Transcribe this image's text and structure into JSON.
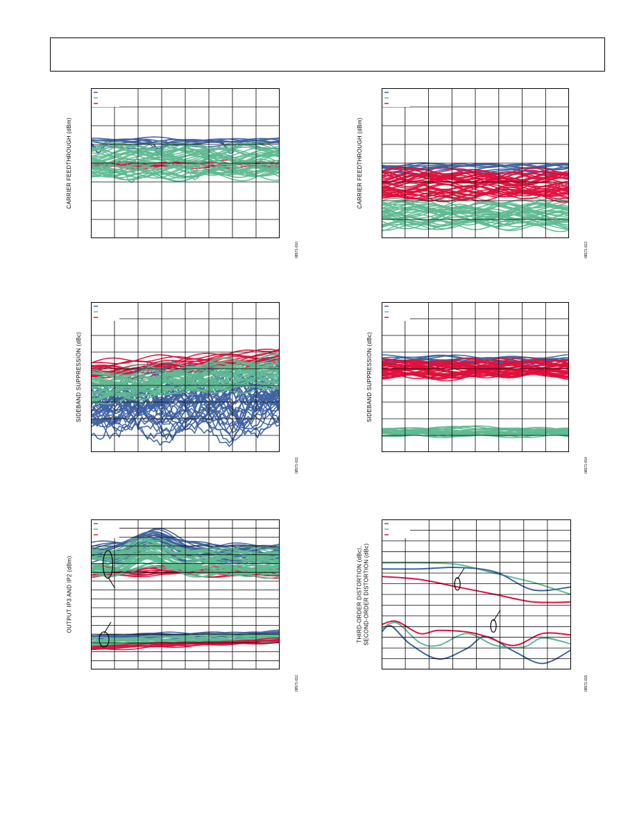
{
  "colors": {
    "blue": "#3f62a0",
    "green": "#5fba91",
    "red": "#e0103c",
    "grid": "#000000"
  },
  "chart_data": [
    {
      "type": "line",
      "ylabel": "CARRIER FEEDTHROUGH (dBm)",
      "figure_id": "08571-010",
      "legend": [
        "",
        "",
        ""
      ],
      "grid_cols": 8,
      "grid_rows": 8,
      "series": [
        {
          "color": "blue",
          "band": [
            0.61,
            0.66
          ],
          "dips": [
            [
              0.04,
              0.55
            ],
            [
              0.36,
              0.35
            ],
            [
              0.74,
              0.45
            ]
          ],
          "lines": 10,
          "seed": 1
        },
        {
          "color": "red",
          "band": [
            0.46,
            0.52
          ],
          "lines": 8,
          "seed": 2
        },
        {
          "color": "green",
          "band": [
            0.42,
            0.61
          ],
          "dips": [
            [
              0.55,
              0.42
            ],
            [
              0.21,
              0.38
            ]
          ],
          "lines": 40,
          "seed": 3
        }
      ]
    },
    {
      "type": "line",
      "ylabel": "CARRIER FEEDTHROUGH (dBm)",
      "figure_id": "08571-013",
      "legend": [
        "",
        "",
        ""
      ],
      "grid_cols": 8,
      "grid_rows": 8,
      "series": [
        {
          "color": "green",
          "band": [
            0.08,
            0.25
          ],
          "lines": 35,
          "seed": 4
        },
        {
          "color": "blue",
          "band": [
            0.42,
            0.49
          ],
          "lines": 10,
          "seed": 5
        },
        {
          "color": "red",
          "band": [
            0.28,
            0.44
          ],
          "lines": 40,
          "seed": 6
        }
      ]
    },
    {
      "type": "line",
      "ylabel": "SIDEBAND SUPPRESSION (dBc)",
      "figure_id": "08571-011",
      "legend": [
        "",
        "",
        ""
      ],
      "grid_cols": 8,
      "grid_rows": 9,
      "series": [
        {
          "color": "red",
          "band": [
            0.53,
            0.64
          ],
          "slope": 0.09,
          "lines": 20,
          "seed": 7
        },
        {
          "color": "blue",
          "band": [
            0.22,
            0.5
          ],
          "slope": 0.06,
          "lines": 40,
          "seed": 8,
          "chaotic": true
        },
        {
          "color": "green",
          "band": [
            0.4,
            0.57
          ],
          "slope": 0.1,
          "lines": 40,
          "seed": 9
        }
      ]
    },
    {
      "type": "line",
      "ylabel": "SIDEBAND SUPPRESSION (dBc)",
      "figure_id": "08571-014",
      "legend": [
        "",
        "",
        ""
      ],
      "grid_cols": 8,
      "grid_rows": 9,
      "series": [
        {
          "color": "green",
          "band": [
            0.11,
            0.16
          ],
          "lines": 25,
          "seed": 10
        },
        {
          "color": "blue",
          "band": [
            0.58,
            0.64
          ],
          "lines": 10,
          "seed": 11
        },
        {
          "color": "red",
          "band": [
            0.5,
            0.61
          ],
          "lines": 40,
          "seed": 12
        }
      ]
    },
    {
      "type": "line",
      "ylabel": "OUTPUT IP3 AND IP2 (dBm)",
      "figure_id": "08571-012",
      "legend": [
        "",
        "",
        ""
      ],
      "grid_cols": 8,
      "grid_rows": 17,
      "series": [
        {
          "color": "blue",
          "band": [
            0.72,
            0.83
          ],
          "bump": [
            0.34,
            0.1
          ],
          "lines": 25,
          "seed": 13
        },
        {
          "color": "red",
          "band": [
            0.62,
            0.68
          ],
          "lines": 12,
          "seed": 14
        },
        {
          "color": "green",
          "band": [
            0.64,
            0.79
          ],
          "bump": [
            0.3,
            0.07
          ],
          "lines": 40,
          "seed": 15
        },
        {
          "color": "blue",
          "band": [
            0.2,
            0.24
          ],
          "slope": 0.03,
          "lines": 10,
          "seed": 16
        },
        {
          "color": "green",
          "band": [
            0.17,
            0.22
          ],
          "slope": 0.03,
          "lines": 20,
          "seed": 17
        },
        {
          "color": "red",
          "band": [
            0.15,
            0.18
          ],
          "slope": 0.05,
          "lines": 10,
          "seed": 18
        }
      ],
      "ellipses": [
        [
          0.09,
          0.7
        ],
        [
          0.07,
          0.2
        ]
      ]
    },
    {
      "type": "line",
      "ylabel": "THIRD-ORDER DISTORTION (dBc),\nSECOND-ORDER DISTORTION (dBc)",
      "figure_id": "08571-015",
      "legend": [
        "",
        "",
        ""
      ],
      "grid_cols": 8,
      "grid_rows": 14,
      "curves": [
        {
          "color": "red",
          "points": [
            [
              0,
              0.62
            ],
            [
              0.2,
              0.6
            ],
            [
              0.4,
              0.55
            ],
            [
              0.6,
              0.5
            ],
            [
              0.8,
              0.45
            ],
            [
              1,
              0.45
            ]
          ]
        },
        {
          "color": "green",
          "points": [
            [
              0,
              0.71
            ],
            [
              0.2,
              0.71
            ],
            [
              0.4,
              0.7
            ],
            [
              0.6,
              0.64
            ],
            [
              0.8,
              0.58
            ],
            [
              1,
              0.5
            ]
          ]
        },
        {
          "color": "blue",
          "points": [
            [
              0,
              0.67
            ],
            [
              0.2,
              0.67
            ],
            [
              0.4,
              0.68
            ],
            [
              0.6,
              0.65
            ],
            [
              0.8,
              0.53
            ],
            [
              1,
              0.55
            ]
          ]
        },
        {
          "color": "blue",
          "points": [
            [
              0,
              0.25
            ],
            [
              0.05,
              0.29
            ],
            [
              0.15,
              0.17
            ],
            [
              0.3,
              0.07
            ],
            [
              0.45,
              0.14
            ],
            [
              0.55,
              0.22
            ],
            [
              0.7,
              0.12
            ],
            [
              0.85,
              0.04
            ],
            [
              1,
              0.13
            ]
          ]
        },
        {
          "color": "green",
          "points": [
            [
              0,
              0.27
            ],
            [
              0.08,
              0.31
            ],
            [
              0.2,
              0.18
            ],
            [
              0.3,
              0.16
            ],
            [
              0.45,
              0.24
            ],
            [
              0.6,
              0.16
            ],
            [
              0.75,
              0.15
            ],
            [
              0.85,
              0.21
            ],
            [
              1,
              0.17
            ]
          ]
        },
        {
          "color": "red",
          "points": [
            [
              0,
              0.3
            ],
            [
              0.08,
              0.32
            ],
            [
              0.2,
              0.24
            ],
            [
              0.3,
              0.26
            ],
            [
              0.45,
              0.25
            ],
            [
              0.55,
              0.22
            ],
            [
              0.7,
              0.16
            ],
            [
              0.85,
              0.24
            ],
            [
              1,
              0.23
            ]
          ]
        }
      ],
      "ellipses": [
        [
          0.4,
          0.57
        ],
        [
          0.59,
          0.29
        ]
      ]
    }
  ]
}
